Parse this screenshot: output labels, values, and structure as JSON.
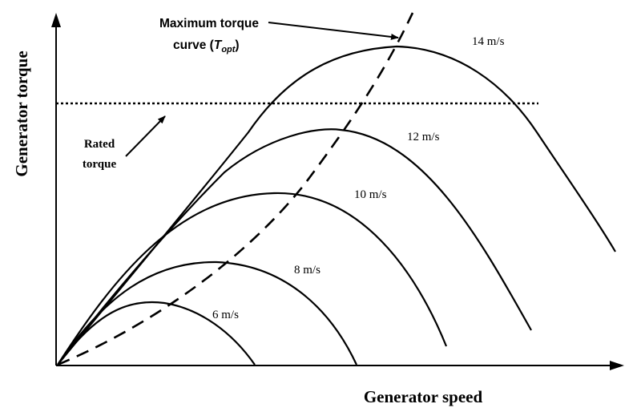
{
  "axes": {
    "x_label": "Generator speed",
    "y_label": "Generator torque"
  },
  "curves": [
    {
      "label": "6 m/s"
    },
    {
      "label": "8 m/s"
    },
    {
      "label": "10 m/s"
    },
    {
      "label": "12 m/s"
    },
    {
      "label": "14 m/s"
    }
  ],
  "annotations": {
    "max_torque_line1": "Maximum torque",
    "max_torque_line2_prefix": "curve (",
    "max_torque_symbol": "T",
    "max_torque_subscript": "opt",
    "max_torque_line2_suffix": ")",
    "rated_line1": "Rated",
    "rated_line2": "torque"
  }
}
